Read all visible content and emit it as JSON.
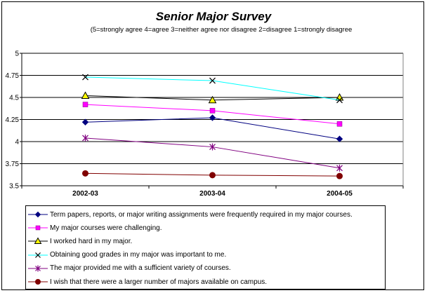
{
  "chart_data": {
    "type": "line",
    "title": "Senior Major Survey",
    "subtitle": "(5=strongly agree 4=agree 3=neither agree nor disagree 2=disagree 1=strongly disagree",
    "categories": [
      "2002-03",
      "2003-04",
      "2004-05"
    ],
    "ylim": [
      3.5,
      5
    ],
    "yticks": [
      "3.5",
      "3.75",
      "4",
      "4.25",
      "4.5",
      "4.75",
      "5"
    ],
    "grid": true,
    "legend_position": "bottom",
    "series": [
      {
        "name": "Term papers, reports, or major writing assignments were frequently required in my major courses.",
        "values": [
          4.22,
          4.27,
          4.03
        ],
        "color": "#000080",
        "marker": "diamond"
      },
      {
        "name": "My major courses were challenging.",
        "values": [
          4.42,
          4.35,
          4.2
        ],
        "color": "#ff00ff",
        "marker": "square"
      },
      {
        "name": "I worked hard in my major.",
        "values": [
          4.52,
          4.47,
          4.5
        ],
        "color": "#000000",
        "marker": "triangle"
      },
      {
        "name": "Obtaining good grades in my major was important to me.",
        "values": [
          4.73,
          4.69,
          4.47
        ],
        "color": "#00ffff",
        "marker": "x"
      },
      {
        "name": "The major provided me with a sufficient variety of courses.",
        "values": [
          4.04,
          3.94,
          3.7
        ],
        "color": "#800080",
        "marker": "star"
      },
      {
        "name": "I wish that there were a larger number of majors available on campus.",
        "values": [
          3.64,
          3.62,
          3.61
        ],
        "color": "#800000",
        "marker": "circle"
      }
    ]
  }
}
